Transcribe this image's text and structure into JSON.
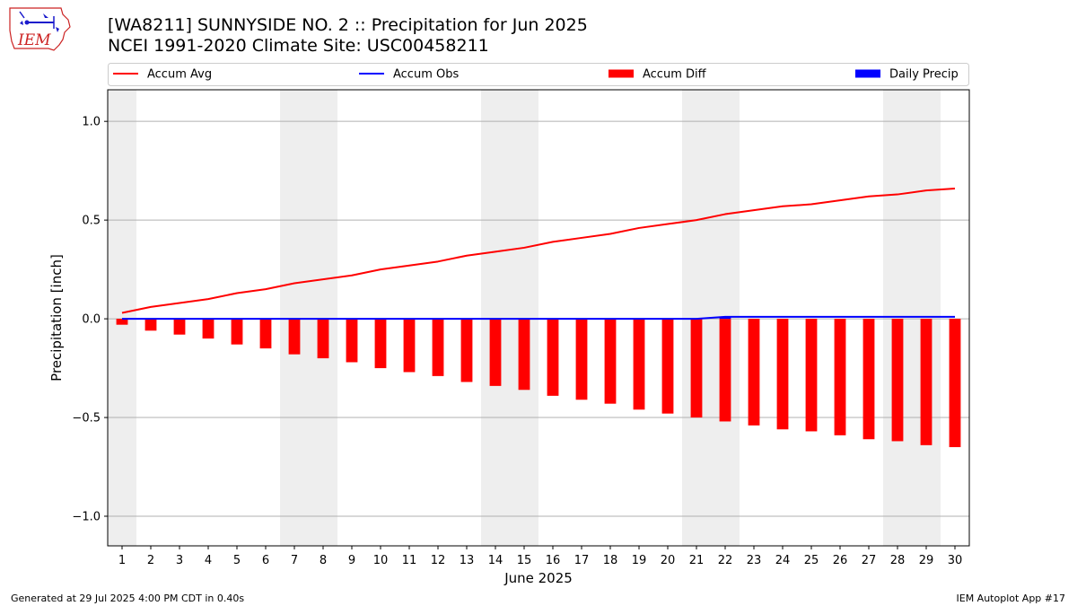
{
  "header": {
    "title_line1": "[WA8211] SUNNYSIDE NO. 2 :: Precipitation for Jun 2025",
    "title_line2": "NCEI 1991-2020 Climate Site: USC00458211",
    "logo_text": "IEM"
  },
  "footer": {
    "generated": "Generated at 29 Jul 2025 4:00 PM CDT in 0.40s",
    "app": "IEM Autoplot App #17"
  },
  "chart_data": {
    "type": "bar",
    "xlabel": "June 2025",
    "ylabel": "Precipitation [inch]",
    "ylim": [
      -1.15,
      1.16
    ],
    "yticks": [
      1.0,
      0.5,
      0.0,
      -0.5,
      -1.0
    ],
    "ytick_labels": [
      "1.0",
      "0.5",
      "0.0",
      "−0.5",
      "−1.0"
    ],
    "x": [
      1,
      2,
      3,
      4,
      5,
      6,
      7,
      8,
      9,
      10,
      11,
      12,
      13,
      14,
      15,
      16,
      17,
      18,
      19,
      20,
      21,
      22,
      23,
      24,
      25,
      26,
      27,
      28,
      29,
      30
    ],
    "grid": "horizontal",
    "legend_position": "top",
    "weekend_shading": [
      [
        1,
        1
      ],
      [
        7,
        8
      ],
      [
        14,
        15
      ],
      [
        21,
        22
      ],
      [
        28,
        29
      ]
    ],
    "series": [
      {
        "name": "Accum Avg",
        "kind": "line",
        "color": "#ff0000",
        "values": [
          0.03,
          0.06,
          0.08,
          0.1,
          0.13,
          0.15,
          0.18,
          0.2,
          0.22,
          0.25,
          0.27,
          0.29,
          0.32,
          0.34,
          0.36,
          0.39,
          0.41,
          0.43,
          0.46,
          0.48,
          0.5,
          0.53,
          0.55,
          0.57,
          0.58,
          0.6,
          0.62,
          0.63,
          0.65,
          0.66
        ]
      },
      {
        "name": "Accum Obs",
        "kind": "line",
        "color": "#0000ff",
        "values": [
          0,
          0,
          0,
          0,
          0,
          0,
          0,
          0,
          0,
          0,
          0,
          0,
          0,
          0,
          0,
          0,
          0,
          0,
          0,
          0,
          0,
          0.01,
          0.01,
          0.01,
          0.01,
          0.01,
          0.01,
          0.01,
          0.01,
          0.01
        ]
      },
      {
        "name": "Accum Diff",
        "kind": "bar",
        "color": "#ff0000",
        "values": [
          -0.03,
          -0.06,
          -0.08,
          -0.1,
          -0.13,
          -0.15,
          -0.18,
          -0.2,
          -0.22,
          -0.25,
          -0.27,
          -0.29,
          -0.32,
          -0.34,
          -0.36,
          -0.39,
          -0.41,
          -0.43,
          -0.46,
          -0.48,
          -0.5,
          -0.52,
          -0.54,
          -0.56,
          -0.57,
          -0.59,
          -0.61,
          -0.62,
          -0.64,
          -0.65
        ]
      },
      {
        "name": "Daily Precip",
        "kind": "bar",
        "color": "#0000ff",
        "values": [
          0,
          0,
          0,
          0,
          0,
          0,
          0,
          0,
          0,
          0,
          0,
          0,
          0,
          0,
          0,
          0,
          0,
          0,
          0,
          0,
          0,
          0.01,
          0,
          0,
          0,
          0,
          0,
          0,
          0,
          0
        ]
      }
    ]
  }
}
